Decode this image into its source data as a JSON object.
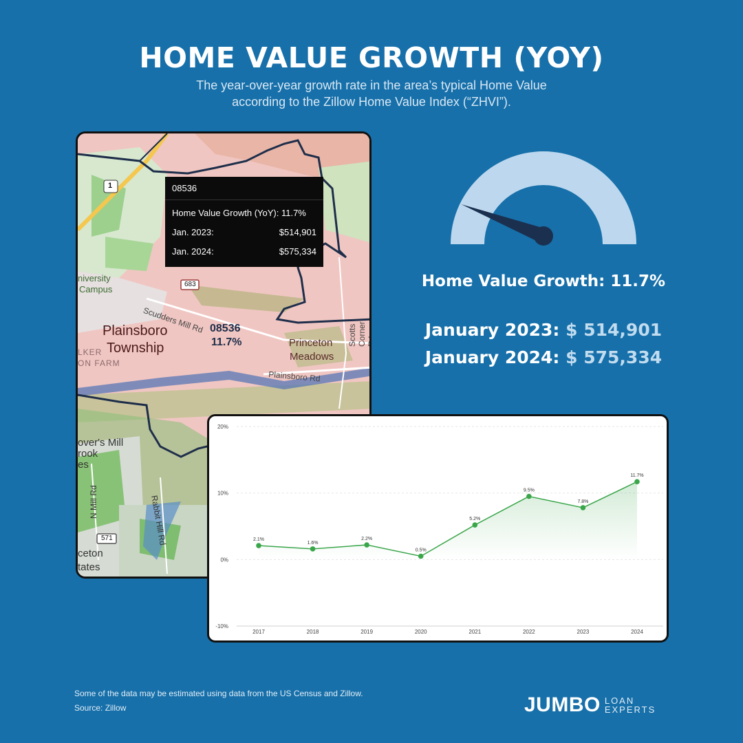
{
  "header": {
    "title": "HOME VALUE GROWTH (YOY)",
    "subtitle_line1": "The year-over-year growth rate in the area’s typical Home Value",
    "subtitle_line2": "according to the Zillow Home Value Index (“ZHVI”)."
  },
  "map": {
    "tooltip": {
      "zip": "08536",
      "growth_label": "Home Value Growth (YoY): 11.7%",
      "jan2023_label": "Jan. 2023:",
      "jan2023_value": "$514,901",
      "jan2024_label": "Jan. 2024:",
      "jan2024_value": "$575,334"
    },
    "labels": {
      "route": "1",
      "university": "niversity",
      "campus": "Campus",
      "road_683": "683",
      "scudders": "Scudders Mill Rd",
      "zip": "08536",
      "zip_growth": "11.7%",
      "township1": "Plainsboro",
      "township2": "Township",
      "walker1": "LKER",
      "walker2": "ON FARM",
      "princeton1": "Princeton",
      "princeton2": "Meadows",
      "plainsboro_rd": "Plainsboro Rd",
      "scotts": "Scotts Corner Rd",
      "grovers1": "over's Mill",
      "grovers2": "rook",
      "grovers3": "es",
      "nmill": "N Mill Rd",
      "rabbit": "Rabbit Hill Rd",
      "road_571": "571",
      "ceton1": "ceton",
      "ceton2": "tates"
    }
  },
  "gauge": {
    "value_percent": 11.7,
    "track_color": "#bdd8ee",
    "needle_color": "#1b2f4f"
  },
  "stats": {
    "growth": "Home Value Growth: 11.7%",
    "jan2023_label": "January 2023:",
    "jan2023_value": "$ 514,901",
    "jan2024_label": "January 2024:",
    "jan2024_value": "$ 575,334"
  },
  "chart_data": {
    "type": "area",
    "categories": [
      "2017",
      "2018",
      "2019",
      "2020",
      "2021",
      "2022",
      "2023",
      "2024"
    ],
    "values": [
      2.1,
      1.6,
      2.2,
      0.5,
      5.2,
      9.5,
      7.8,
      11.7
    ],
    "data_labels": [
      "2.1%",
      "1.6%",
      "2.2%",
      "0.5%",
      "5.2%",
      "9.5%",
      "7.8%",
      "11.7%"
    ],
    "ylim": [
      -10,
      20
    ],
    "y_ticks": [
      20,
      10,
      0,
      -10
    ],
    "y_tick_labels": [
      "20%",
      "10%",
      "0%",
      "-10%"
    ],
    "grid": true,
    "line_color": "#3aa64a",
    "fill_color": "#3aa64a"
  },
  "footer": {
    "note": "Some of the data may be estimated using data from the US Census and Zillow.",
    "source": "Source: Zillow"
  },
  "logo": {
    "main": "JUMBO",
    "sub1": "LOAN",
    "sub2": "EXPERTS"
  }
}
